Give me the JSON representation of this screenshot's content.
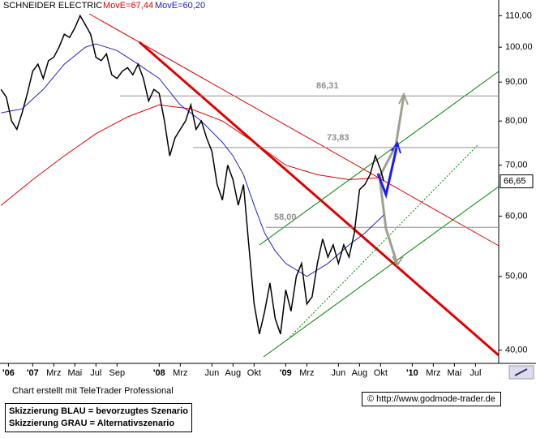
{
  "chart_data": {
    "type": "line",
    "title": "SCHNEIDER ELECTRIC",
    "log_scale": true,
    "xlim": [
      -3.1,
      44.2
    ],
    "ylim": [
      39.2,
      112
    ],
    "xticks": [
      {
        "value": -2.3,
        "label": "'06"
      },
      {
        "value": 0,
        "label": "'07"
      },
      {
        "value": 2,
        "label": "Mrz"
      },
      {
        "value": 4,
        "label": "Mai"
      },
      {
        "value": 6,
        "label": "Jul"
      },
      {
        "value": 8,
        "label": "Sep"
      },
      {
        "value": 12,
        "label": "'08"
      },
      {
        "value": 14,
        "label": "Mrz"
      },
      {
        "value": 17,
        "label": "Jun"
      },
      {
        "value": 19,
        "label": "Aug"
      },
      {
        "value": 21,
        "label": "Okt"
      },
      {
        "value": 24,
        "label": "'09"
      },
      {
        "value": 26,
        "label": "Mrz"
      },
      {
        "value": 29,
        "label": "Jun"
      },
      {
        "value": 31,
        "label": "Aug"
      },
      {
        "value": 33,
        "label": "Okt"
      },
      {
        "value": 36,
        "label": "'10"
      },
      {
        "value": 38,
        "label": "Mrz"
      },
      {
        "value": 40,
        "label": "Mai"
      },
      {
        "value": 42,
        "label": "Jul"
      }
    ],
    "yticks": [
      {
        "value": 40,
        "label": "40,00"
      },
      {
        "value": 50,
        "label": "50,00"
      },
      {
        "value": 60,
        "label": "60,00"
      },
      {
        "value": 70,
        "label": "70,00"
      },
      {
        "value": 80,
        "label": "80,00"
      },
      {
        "value": 90,
        "label": "90,00"
      },
      {
        "value": 100,
        "label": "100,00"
      },
      {
        "value": 110,
        "label": "110,00"
      }
    ],
    "series": [
      {
        "name": "MovE=67,44",
        "color": "#e00000",
        "x": [
          -3,
          0,
          3,
          6,
          9,
          12,
          15,
          18,
          21,
          24,
          27,
          30,
          33.3
        ],
        "values": [
          62,
          67,
          72,
          77,
          81,
          84,
          83,
          80,
          75,
          70,
          68,
          67,
          67.44
        ]
      },
      {
        "name": "MovE=60,20",
        "color": "#2020c0",
        "x": [
          -3,
          -1,
          1,
          3,
          5,
          6,
          8,
          10,
          12,
          14,
          16,
          18,
          19,
          20,
          21,
          22,
          23,
          24,
          26,
          28,
          30,
          31.5,
          33.3
        ],
        "values": [
          82,
          83,
          88,
          95,
          100,
          101,
          99,
          95,
          91,
          84,
          80,
          75,
          72,
          68,
          62,
          57,
          54,
          52,
          50,
          52,
          55,
          57,
          60.2
        ]
      },
      {
        "color": "#000000",
        "x": [
          -3,
          -2.5,
          -2,
          -1.5,
          -1,
          -0.5,
          0,
          0.5,
          1,
          1.5,
          2,
          2.5,
          3,
          3.5,
          4,
          4.5,
          5,
          5.5,
          6,
          6.5,
          7,
          7.5,
          8,
          8.5,
          9,
          9.5,
          10,
          10.5,
          11,
          11.5,
          12,
          12.5,
          13,
          13.5,
          14,
          14.5,
          15,
          15.5,
          16,
          16.5,
          17,
          17.5,
          18,
          18.5,
          19,
          19.5,
          20,
          20.5,
          21,
          21.5,
          22,
          22.5,
          23,
          23.5,
          24,
          24.5,
          25,
          25.5,
          26,
          26.5,
          27,
          27.5,
          28,
          28.5,
          29,
          29.5,
          30,
          30.5,
          31,
          31.5,
          32,
          32.5,
          33,
          33.3
        ],
        "values": [
          88,
          86,
          80,
          78,
          82,
          87,
          93,
          95,
          91,
          96,
          97,
          100,
          104,
          103,
          106,
          110,
          107,
          104,
          97,
          96,
          98,
          92,
          91,
          93,
          94,
          92,
          95,
          91,
          85,
          88,
          87,
          80,
          72,
          76,
          78,
          80,
          84,
          78,
          80,
          76,
          73,
          66,
          63,
          70,
          67,
          62,
          66,
          55,
          46,
          42,
          45,
          49,
          44,
          42,
          48,
          45,
          50,
          52,
          46,
          47,
          52,
          56,
          53,
          55,
          52,
          55,
          53,
          57,
          65,
          66,
          68,
          72,
          69,
          66.65
        ]
      }
    ],
    "levels": [
      {
        "value": 86.31,
        "label": "86,31"
      },
      {
        "value": 73.83,
        "label": "73,83"
      },
      {
        "value": 58,
        "label": "58,00"
      }
    ],
    "last_price": {
      "value": 66.65,
      "label": "66,65"
    },
    "credit": "Chart erstellt mit TeleTrader Professional",
    "notes": [
      "Skizzierung BLAU = bevorzugtes Szenario",
      "Skizzierung GRAU = Alternativszenario"
    ],
    "source": "© http://www.godmode-trader.de"
  }
}
